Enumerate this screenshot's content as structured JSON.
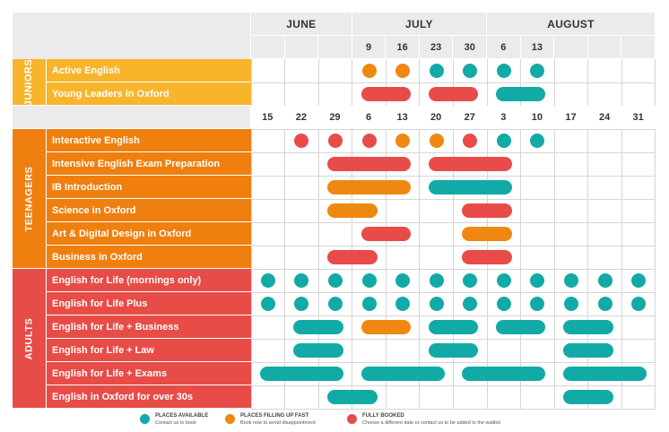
{
  "colors": {
    "available": "#12aaa6",
    "filling": "#ef8810",
    "booked": "#e94b4a",
    "juniors": "#f8b52c",
    "teenagers": "#ef7f0f",
    "adults": "#e84c47"
  },
  "header": {
    "months": [
      {
        "label": "JUNE"
      },
      {
        "label": "JULY"
      },
      {
        "label": "AUGUST"
      }
    ],
    "junior_dates": [
      "",
      "",
      "",
      "9",
      "16",
      "23",
      "30",
      "6",
      "13",
      "",
      "",
      ""
    ],
    "main_dates": [
      "15",
      "22",
      "29",
      "6",
      "13",
      "20",
      "27",
      "3",
      "10",
      "17",
      "24",
      "31"
    ]
  },
  "groups": [
    {
      "label": "JUNIORS",
      "color_key": "juniors",
      "courses": [
        {
          "name": "Active English",
          "marks": [
            {
              "type": "dot",
              "col": 3,
              "status": "filling"
            },
            {
              "type": "dot",
              "col": 4,
              "status": "filling"
            },
            {
              "type": "dot",
              "col": 5,
              "status": "available"
            },
            {
              "type": "dot",
              "col": 6,
              "status": "available"
            },
            {
              "type": "dot",
              "col": 7,
              "status": "available"
            },
            {
              "type": "dot",
              "col": 8,
              "status": "available"
            }
          ]
        },
        {
          "name": "Young Leaders in Oxford",
          "marks": [
            {
              "type": "bar",
              "from": 3,
              "to": 4,
              "status": "booked"
            },
            {
              "type": "bar",
              "from": 5,
              "to": 6,
              "status": "booked"
            },
            {
              "type": "bar",
              "from": 7,
              "to": 8,
              "status": "available"
            }
          ]
        }
      ]
    },
    {
      "label": "TEENAGERS",
      "color_key": "teenagers",
      "courses": [
        {
          "name": "Interactive English",
          "marks": [
            {
              "type": "dot",
              "col": 1,
              "status": "booked"
            },
            {
              "type": "dot",
              "col": 2,
              "status": "booked"
            },
            {
              "type": "dot",
              "col": 3,
              "status": "booked"
            },
            {
              "type": "dot",
              "col": 4,
              "status": "filling"
            },
            {
              "type": "dot",
              "col": 5,
              "status": "filling"
            },
            {
              "type": "dot",
              "col": 6,
              "status": "booked"
            },
            {
              "type": "dot",
              "col": 7,
              "status": "available"
            },
            {
              "type": "dot",
              "col": 8,
              "status": "available"
            }
          ]
        },
        {
          "name": "Intensive English Exam Preparation",
          "marks": [
            {
              "type": "bar",
              "from": 2,
              "to": 4,
              "status": "booked"
            },
            {
              "type": "bar",
              "from": 5,
              "to": 7,
              "status": "booked"
            }
          ]
        },
        {
          "name": "IB Introduction",
          "marks": [
            {
              "type": "bar",
              "from": 2,
              "to": 4,
              "status": "filling"
            },
            {
              "type": "bar",
              "from": 5,
              "to": 7,
              "status": "available"
            }
          ]
        },
        {
          "name": "Science in Oxford",
          "marks": [
            {
              "type": "bar",
              "from": 2,
              "to": 3,
              "status": "filling"
            },
            {
              "type": "bar",
              "from": 6,
              "to": 7,
              "status": "booked"
            }
          ]
        },
        {
          "name": "Art & Digital Design in Oxford",
          "marks": [
            {
              "type": "bar",
              "from": 3,
              "to": 4,
              "status": "booked"
            },
            {
              "type": "bar",
              "from": 6,
              "to": 7,
              "status": "filling"
            }
          ]
        },
        {
          "name": "Business in Oxford",
          "marks": [
            {
              "type": "bar",
              "from": 2,
              "to": 3,
              "status": "booked"
            },
            {
              "type": "bar",
              "from": 6,
              "to": 7,
              "status": "booked"
            }
          ]
        }
      ]
    },
    {
      "label": "ADULTS",
      "color_key": "adults",
      "courses": [
        {
          "name": "English for Life (mornings only)",
          "marks": [
            {
              "type": "dot",
              "col": 0,
              "status": "available"
            },
            {
              "type": "dot",
              "col": 1,
              "status": "available"
            },
            {
              "type": "dot",
              "col": 2,
              "status": "available"
            },
            {
              "type": "dot",
              "col": 3,
              "status": "available"
            },
            {
              "type": "dot",
              "col": 4,
              "status": "available"
            },
            {
              "type": "dot",
              "col": 5,
              "status": "available"
            },
            {
              "type": "dot",
              "col": 6,
              "status": "available"
            },
            {
              "type": "dot",
              "col": 7,
              "status": "available"
            },
            {
              "type": "dot",
              "col": 8,
              "status": "available"
            },
            {
              "type": "dot",
              "col": 9,
              "status": "available"
            },
            {
              "type": "dot",
              "col": 10,
              "status": "available"
            },
            {
              "type": "dot",
              "col": 11,
              "status": "available"
            }
          ]
        },
        {
          "name": "English for Life Plus",
          "marks": [
            {
              "type": "dot",
              "col": 0,
              "status": "available"
            },
            {
              "type": "dot",
              "col": 1,
              "status": "available"
            },
            {
              "type": "dot",
              "col": 2,
              "status": "available"
            },
            {
              "type": "dot",
              "col": 3,
              "status": "available"
            },
            {
              "type": "dot",
              "col": 4,
              "status": "available"
            },
            {
              "type": "dot",
              "col": 5,
              "status": "available"
            },
            {
              "type": "dot",
              "col": 6,
              "status": "available"
            },
            {
              "type": "dot",
              "col": 7,
              "status": "available"
            },
            {
              "type": "dot",
              "col": 8,
              "status": "available"
            },
            {
              "type": "dot",
              "col": 9,
              "status": "available"
            },
            {
              "type": "dot",
              "col": 10,
              "status": "available"
            },
            {
              "type": "dot",
              "col": 11,
              "status": "available"
            }
          ]
        },
        {
          "name": "English for Life + Business",
          "marks": [
            {
              "type": "bar",
              "from": 1,
              "to": 2,
              "status": "available"
            },
            {
              "type": "bar",
              "from": 3,
              "to": 4,
              "status": "filling"
            },
            {
              "type": "bar",
              "from": 5,
              "to": 6,
              "status": "available"
            },
            {
              "type": "bar",
              "from": 7,
              "to": 8,
              "status": "available"
            },
            {
              "type": "bar",
              "from": 9,
              "to": 10,
              "status": "available"
            }
          ]
        },
        {
          "name": "English for Life + Law",
          "marks": [
            {
              "type": "bar",
              "from": 1,
              "to": 2,
              "status": "available"
            },
            {
              "type": "bar",
              "from": 5,
              "to": 6,
              "status": "available"
            },
            {
              "type": "bar",
              "from": 9,
              "to": 10,
              "status": "available"
            }
          ]
        },
        {
          "name": "English for Life + Exams",
          "marks": [
            {
              "type": "bar",
              "from": 0,
              "to": 2,
              "status": "available"
            },
            {
              "type": "bar",
              "from": 3,
              "to": 5,
              "status": "available"
            },
            {
              "type": "bar",
              "from": 6,
              "to": 8,
              "status": "available"
            },
            {
              "type": "bar",
              "from": 9,
              "to": 11,
              "status": "available"
            }
          ]
        },
        {
          "name": "English in Oxford for over 30s",
          "marks": [
            {
              "type": "bar",
              "from": 2,
              "to": 3,
              "status": "available"
            },
            {
              "type": "bar",
              "from": 9,
              "to": 10,
              "status": "available"
            }
          ]
        }
      ]
    }
  ],
  "legend": [
    {
      "title": "PLACES AVAILABLE",
      "subtitle": "Contact us to book",
      "status": "available"
    },
    {
      "title": "PLACES FILLING UP FAST",
      "subtitle": "Book now to avoid disappointment",
      "status": "filling"
    },
    {
      "title": "FULLY BOOKED",
      "subtitle": "Choose a different date or contact us to be added to the waitlist",
      "status": "booked"
    }
  ]
}
